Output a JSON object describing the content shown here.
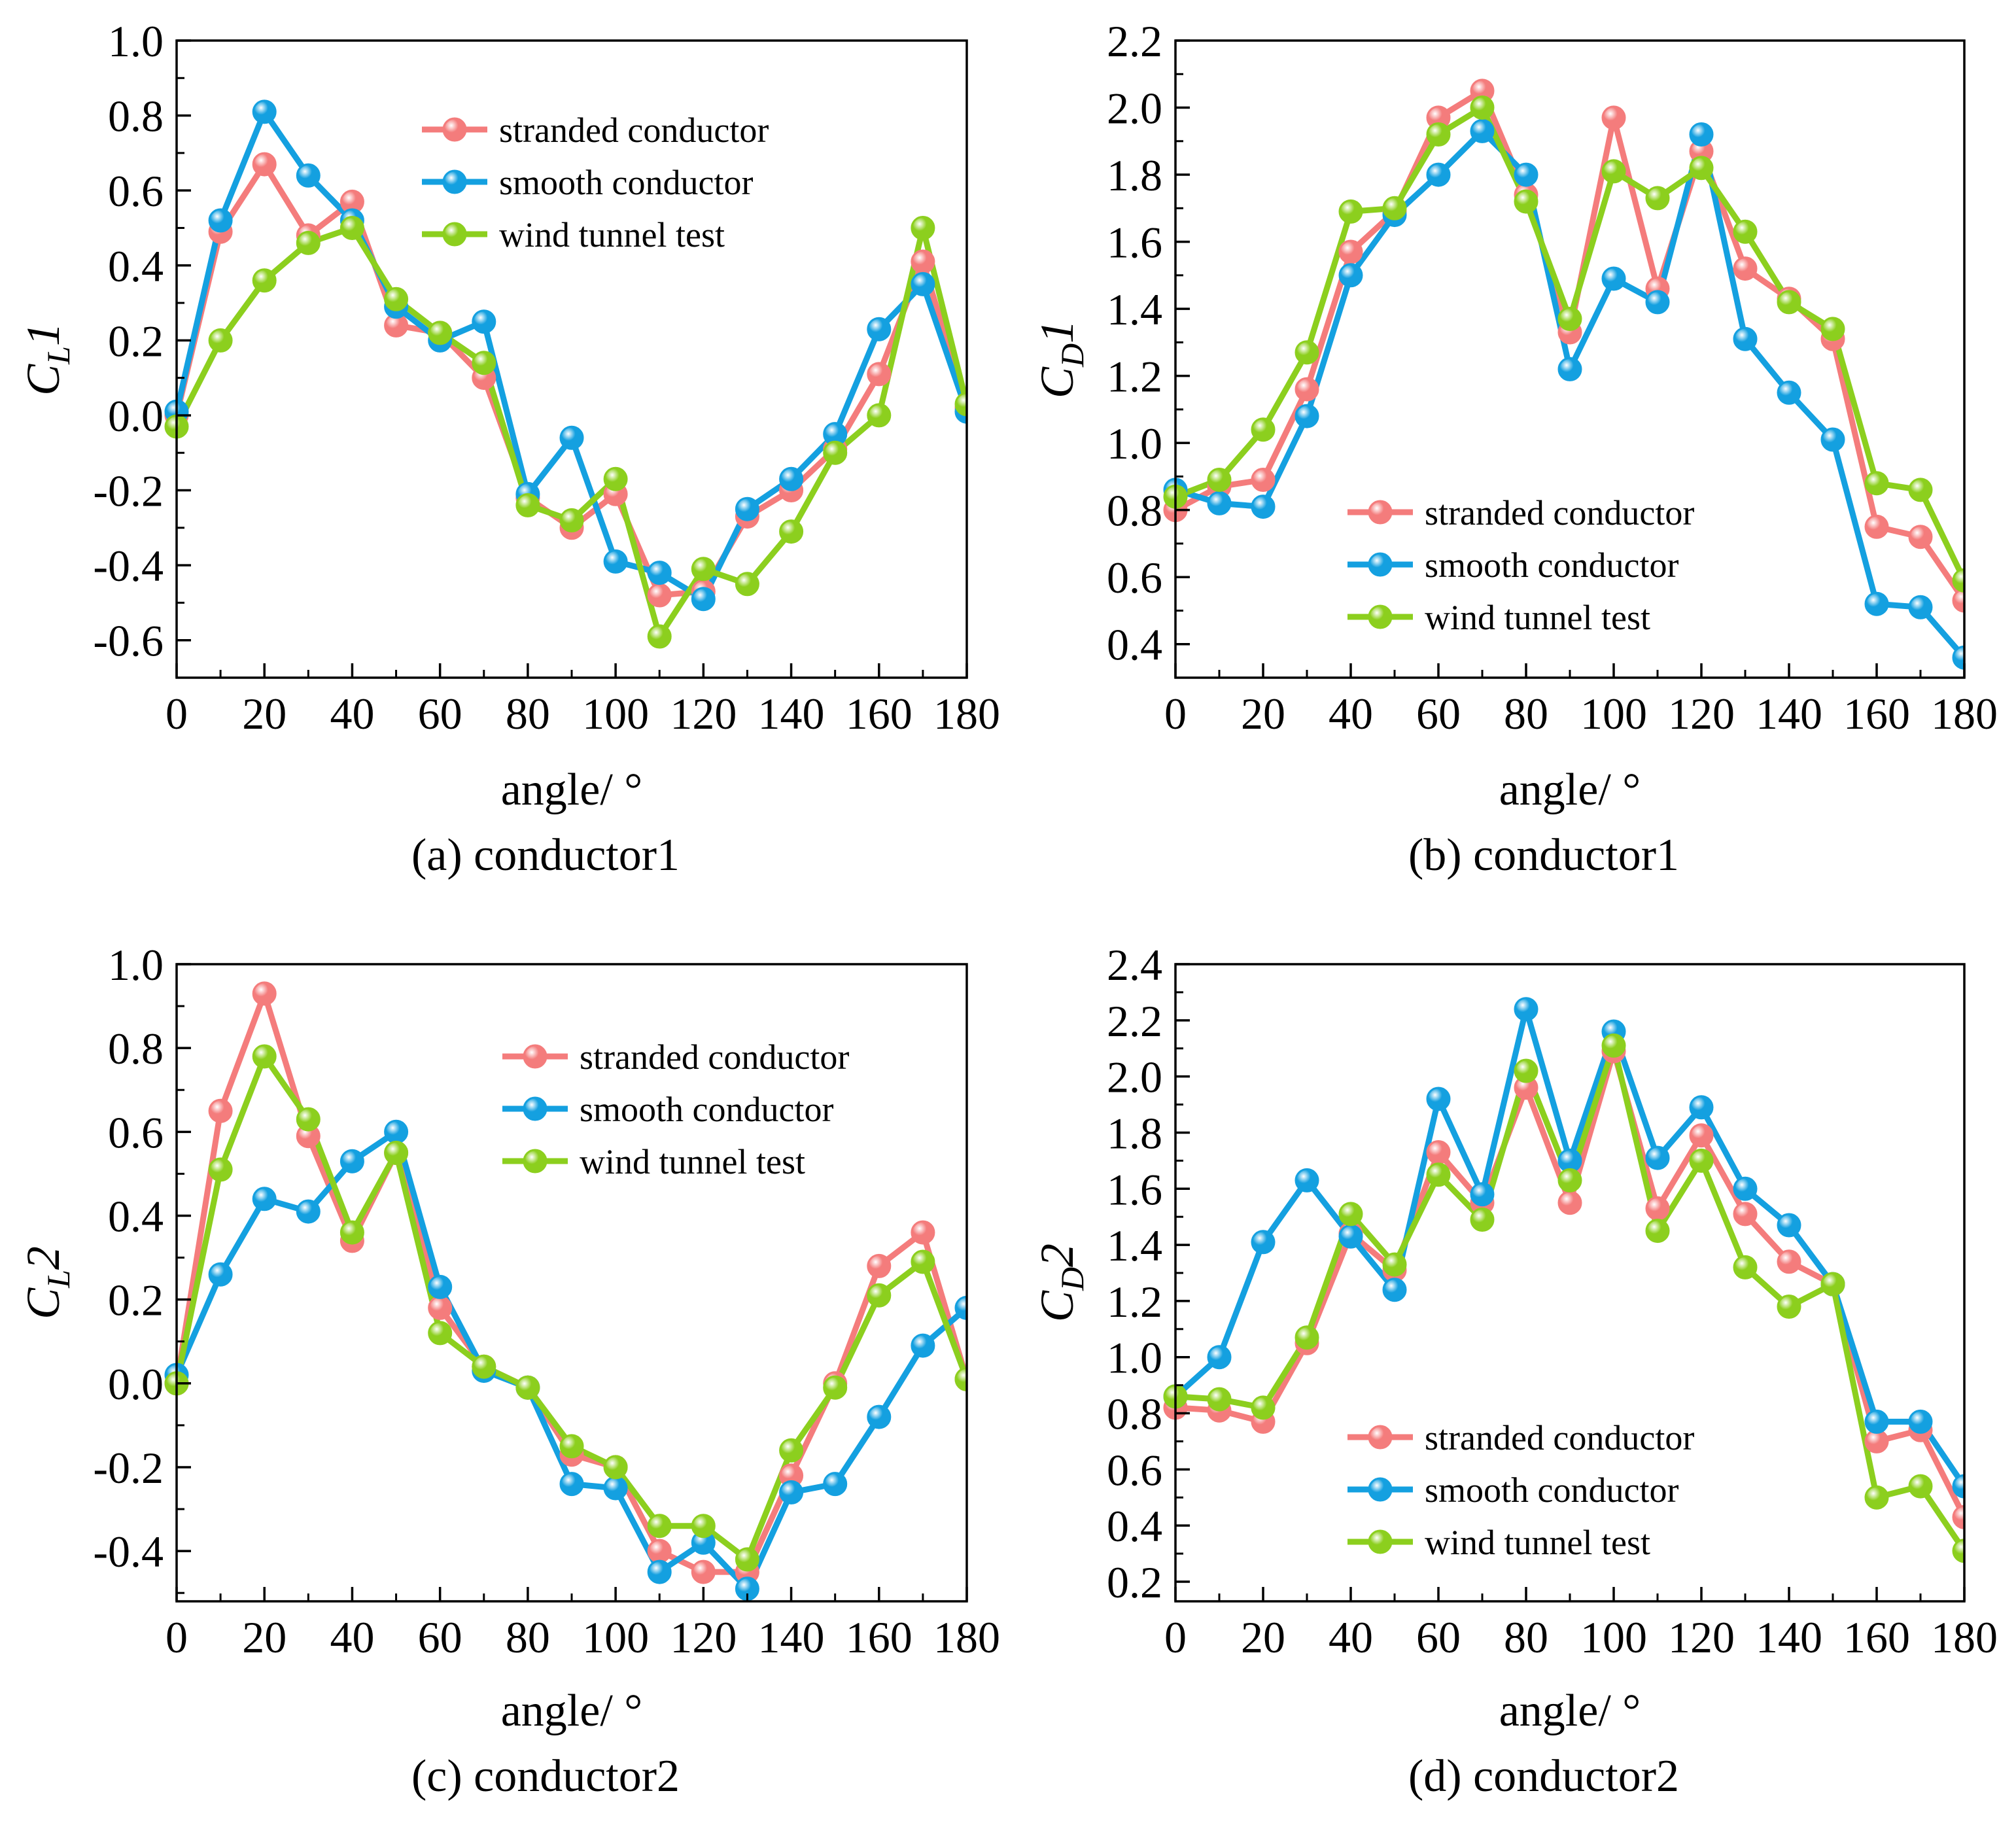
{
  "colors": {
    "stranded": "#f47c7c",
    "smooth": "#14a0e0",
    "wind": "#8ccf1e",
    "axis": "#000000"
  },
  "chart_data": [
    {
      "id": "a",
      "type": "line",
      "caption": "(a) conductor1",
      "xlabel": "angle/ °",
      "ylabel": {
        "main": "C",
        "sub": "L",
        "suffix": "1"
      },
      "xlim": [
        0,
        180
      ],
      "ylim": [
        -0.7,
        1.0
      ],
      "xticks": [
        0,
        20,
        40,
        60,
        80,
        100,
        120,
        140,
        160,
        180
      ],
      "yticks": [
        -0.6,
        -0.4,
        -0.2,
        0.0,
        0.2,
        0.4,
        0.6,
        0.8,
        1.0
      ],
      "ytick_labels": [
        "-0.6",
        "-0.4",
        "-0.2",
        "0.0",
        "0.2",
        "0.4",
        "0.6",
        "0.8",
        "1.0"
      ],
      "legend_position": "upper-center",
      "x": [
        0,
        10,
        20,
        30,
        40,
        50,
        60,
        70,
        80,
        90,
        100,
        110,
        120,
        130,
        140,
        150,
        160,
        170,
        180
      ],
      "series": [
        {
          "name": "stranded conductor",
          "color_key": "stranded",
          "values": [
            0.0,
            0.49,
            0.67,
            0.48,
            0.57,
            0.24,
            0.22,
            0.1,
            -0.22,
            -0.3,
            -0.21,
            -0.48,
            -0.47,
            -0.27,
            -0.2,
            -0.09,
            0.11,
            0.41,
            0.02
          ]
        },
        {
          "name": "smooth conductor",
          "color_key": "smooth",
          "values": [
            0.01,
            0.52,
            0.81,
            0.64,
            0.52,
            0.29,
            0.2,
            0.25,
            -0.21,
            -0.06,
            -0.39,
            -0.42,
            -0.49,
            -0.25,
            -0.17,
            -0.05,
            0.23,
            0.35,
            0.01
          ]
        },
        {
          "name": "wind tunnel test",
          "color_key": "wind",
          "values": [
            -0.03,
            0.2,
            0.36,
            0.46,
            0.5,
            0.31,
            0.22,
            0.14,
            -0.24,
            -0.28,
            -0.17,
            -0.59,
            -0.41,
            -0.45,
            -0.31,
            -0.1,
            0.0,
            0.5,
            0.03
          ]
        }
      ]
    },
    {
      "id": "b",
      "type": "line",
      "caption": "(b) conductor1",
      "xlabel": "angle/ °",
      "ylabel": {
        "main": "C",
        "sub": "D",
        "suffix": "1"
      },
      "xlim": [
        0,
        180
      ],
      "ylim": [
        0.3,
        2.2
      ],
      "xticks": [
        0,
        20,
        40,
        60,
        80,
        100,
        120,
        140,
        160,
        180
      ],
      "yticks": [
        0.4,
        0.6,
        0.8,
        1.0,
        1.2,
        1.4,
        1.6,
        1.8,
        2.0,
        2.2
      ],
      "ytick_labels": [
        "0.4",
        "0.6",
        "0.8",
        "1.0",
        "1.2",
        "1.4",
        "1.6",
        "1.8",
        "2.0",
        "2.2"
      ],
      "legend_position": "lower-right",
      "x": [
        0,
        10,
        20,
        30,
        40,
        50,
        60,
        70,
        80,
        90,
        100,
        110,
        120,
        130,
        140,
        150,
        160,
        170,
        180
      ],
      "series": [
        {
          "name": "stranded conductor",
          "color_key": "stranded",
          "values": [
            0.8,
            0.87,
            0.89,
            1.16,
            1.57,
            1.69,
            1.97,
            2.05,
            1.74,
            1.33,
            1.97,
            1.46,
            1.87,
            1.52,
            1.43,
            1.31,
            0.75,
            0.72,
            0.53
          ]
        },
        {
          "name": "smooth conductor",
          "color_key": "smooth",
          "values": [
            0.86,
            0.82,
            0.81,
            1.08,
            1.5,
            1.68,
            1.8,
            1.93,
            1.8,
            1.22,
            1.49,
            1.42,
            1.92,
            1.31,
            1.15,
            1.01,
            0.52,
            0.51,
            0.36
          ]
        },
        {
          "name": "wind tunnel test",
          "color_key": "wind",
          "values": [
            0.84,
            0.89,
            1.04,
            1.27,
            1.69,
            1.7,
            1.92,
            2.0,
            1.72,
            1.37,
            1.81,
            1.73,
            1.82,
            1.63,
            1.42,
            1.34,
            0.88,
            0.86,
            0.59
          ]
        }
      ]
    },
    {
      "id": "c",
      "type": "line",
      "caption": "(c) conductor2",
      "xlabel": "angle/ °",
      "ylabel": {
        "main": "C",
        "sub": "L",
        "suffix": "2"
      },
      "xlim": [
        0,
        180
      ],
      "ylim": [
        -0.52,
        1.0
      ],
      "xticks": [
        0,
        20,
        40,
        60,
        80,
        100,
        120,
        140,
        160,
        180
      ],
      "yticks": [
        -0.4,
        -0.2,
        0.0,
        0.2,
        0.4,
        0.6,
        0.8,
        1.0
      ],
      "ytick_labels": [
        "-0.4",
        "-0.2",
        "0.0",
        "0.2",
        "0.4",
        "0.6",
        "0.8",
        "1.0"
      ],
      "legend_position": "upper-right",
      "x": [
        0,
        10,
        20,
        30,
        40,
        50,
        60,
        70,
        80,
        90,
        100,
        110,
        120,
        130,
        140,
        150,
        160,
        170,
        180
      ],
      "series": [
        {
          "name": "stranded conductor",
          "color_key": "stranded",
          "values": [
            0.0,
            0.65,
            0.93,
            0.59,
            0.34,
            0.55,
            0.18,
            0.04,
            -0.01,
            -0.17,
            -0.2,
            -0.4,
            -0.45,
            -0.45,
            -0.22,
            0.0,
            0.28,
            0.36,
            0.01
          ]
        },
        {
          "name": "smooth conductor",
          "color_key": "smooth",
          "values": [
            0.02,
            0.26,
            0.44,
            0.41,
            0.53,
            0.6,
            0.23,
            0.03,
            -0.01,
            -0.24,
            -0.25,
            -0.45,
            -0.38,
            -0.49,
            -0.26,
            -0.24,
            -0.08,
            0.09,
            0.18
          ]
        },
        {
          "name": "wind tunnel test",
          "color_key": "wind",
          "values": [
            0.0,
            0.51,
            0.78,
            0.63,
            0.36,
            0.55,
            0.12,
            0.04,
            -0.01,
            -0.15,
            -0.2,
            -0.34,
            -0.34,
            -0.42,
            -0.16,
            -0.01,
            0.21,
            0.29,
            0.01
          ]
        }
      ]
    },
    {
      "id": "d",
      "type": "line",
      "caption": "(d) conductor2",
      "xlabel": "angle/ °",
      "ylabel": {
        "main": "C",
        "sub": "D",
        "suffix": "2"
      },
      "xlim": [
        0,
        180
      ],
      "ylim": [
        0.13,
        2.4
      ],
      "xticks": [
        0,
        20,
        40,
        60,
        80,
        100,
        120,
        140,
        160,
        180
      ],
      "yticks": [
        0.2,
        0.4,
        0.6,
        0.8,
        1.0,
        1.2,
        1.4,
        1.6,
        1.8,
        2.0,
        2.2,
        2.4
      ],
      "ytick_labels": [
        "0.2",
        "0.4",
        "0.6",
        "0.8",
        "1.0",
        "1.2",
        "1.4",
        "1.6",
        "1.8",
        "2.0",
        "2.2",
        "2.4"
      ],
      "legend_position": "lower-right",
      "x": [
        0,
        10,
        20,
        30,
        40,
        50,
        60,
        70,
        80,
        90,
        100,
        110,
        120,
        130,
        140,
        150,
        160,
        170,
        180
      ],
      "series": [
        {
          "name": "stranded conductor",
          "color_key": "stranded",
          "values": [
            0.82,
            0.81,
            0.77,
            1.05,
            1.44,
            1.31,
            1.73,
            1.55,
            1.96,
            1.55,
            2.09,
            1.53,
            1.79,
            1.51,
            1.34,
            1.26,
            0.7,
            0.74,
            0.43
          ]
        },
        {
          "name": "smooth conductor",
          "color_key": "smooth",
          "values": [
            0.86,
            1.0,
            1.41,
            1.63,
            1.43,
            1.24,
            1.92,
            1.58,
            2.24,
            1.7,
            2.16,
            1.71,
            1.89,
            1.6,
            1.47,
            1.26,
            0.77,
            0.77,
            0.54
          ]
        },
        {
          "name": "wind tunnel test",
          "color_key": "wind",
          "values": [
            0.86,
            0.85,
            0.82,
            1.07,
            1.51,
            1.33,
            1.65,
            1.49,
            2.02,
            1.63,
            2.11,
            1.45,
            1.7,
            1.32,
            1.18,
            1.26,
            0.5,
            0.54,
            0.31
          ]
        }
      ]
    }
  ]
}
